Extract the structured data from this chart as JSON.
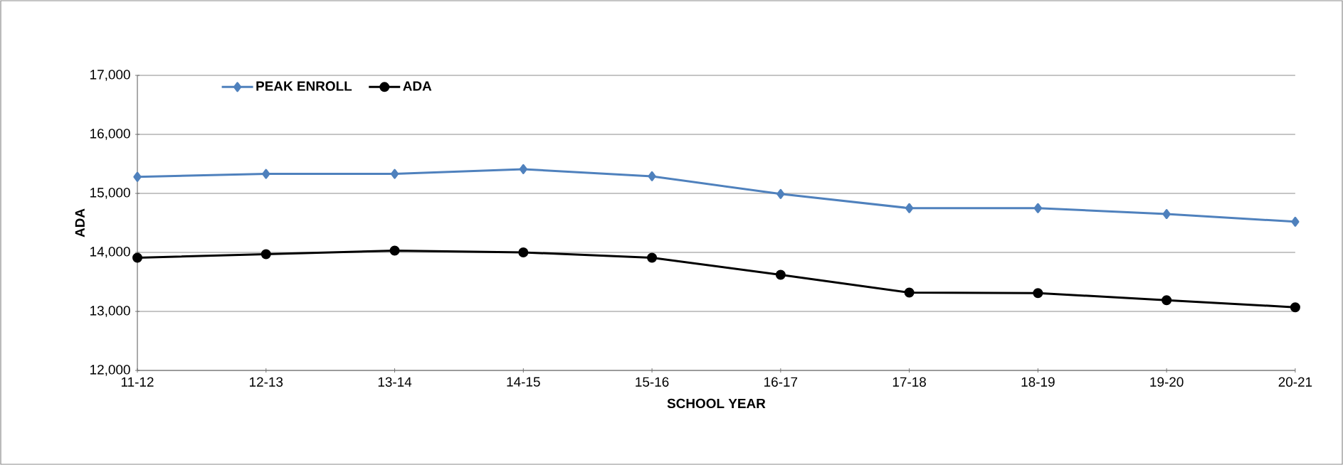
{
  "chart_data": {
    "type": "line",
    "xlabel": "SCHOOL YEAR",
    "ylabel": "ADA",
    "categories": [
      "11-12",
      "12-13",
      "13-14",
      "14-15",
      "15-16",
      "16-17",
      "17-18",
      "18-19",
      "19-20",
      "20-21"
    ],
    "series": [
      {
        "name": "PEAK ENROLL",
        "color": "#4f81bd",
        "marker": "diamond",
        "values": [
          15280,
          15330,
          15330,
          15410,
          15290,
          14990,
          14750,
          14750,
          14650,
          14520
        ]
      },
      {
        "name": "ADA",
        "color": "#000000",
        "marker": "circle",
        "values": [
          13910,
          13970,
          14030,
          14000,
          13910,
          13620,
          13320,
          13310,
          13190,
          13070
        ]
      }
    ],
    "ylim": [
      12000,
      17000
    ],
    "yticks": [
      {
        "value": 12000,
        "label": "12,000"
      },
      {
        "value": 13000,
        "label": "13,000"
      },
      {
        "value": 14000,
        "label": "14,000"
      },
      {
        "value": 15000,
        "label": "15,000"
      },
      {
        "value": 16000,
        "label": "16,000"
      },
      {
        "value": 17000,
        "label": "17,000"
      }
    ],
    "grid": "y",
    "legend": "top left",
    "line_style": "solid"
  }
}
